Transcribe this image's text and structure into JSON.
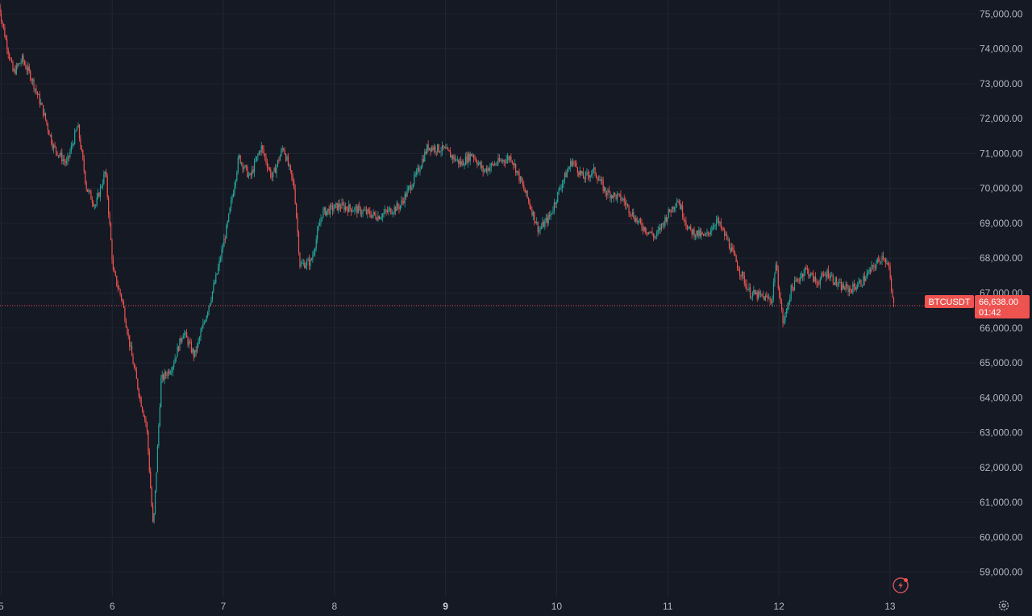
{
  "chart_data": {
    "type": "candlestick",
    "symbol": "BTCUSDT",
    "last_price": "66,638.00",
    "countdown": "01:42",
    "last_price_value": 66638,
    "ylim": [
      58300,
      75400
    ],
    "y_ticks": [
      {
        "value": 75000,
        "label": "75,000.00"
      },
      {
        "value": 74000,
        "label": "74,000.00"
      },
      {
        "value": 73000,
        "label": "73,000.00"
      },
      {
        "value": 72000,
        "label": "72,000.00"
      },
      {
        "value": 71000,
        "label": "71,000.00"
      },
      {
        "value": 70000,
        "label": "70,000.00"
      },
      {
        "value": 69000,
        "label": "69,000.00"
      },
      {
        "value": 68000,
        "label": "68,000.00"
      },
      {
        "value": 67000,
        "label": "67,000.00"
      },
      {
        "value": 66000,
        "label": "66,000.00"
      },
      {
        "value": 65000,
        "label": "65,000.00"
      },
      {
        "value": 64000,
        "label": "64,000.00"
      },
      {
        "value": 63000,
        "label": "63,000.00"
      },
      {
        "value": 62000,
        "label": "62,000.00"
      },
      {
        "value": 61000,
        "label": "61,000.00"
      },
      {
        "value": 60000,
        "label": "60,000.00"
      },
      {
        "value": 59000,
        "label": "59,000.00"
      }
    ],
    "x_range": [
      4.99,
      13.77
    ],
    "x_ticks": [
      {
        "value": 5,
        "label": "5",
        "bold": false
      },
      {
        "value": 6,
        "label": "6",
        "bold": false
      },
      {
        "value": 7,
        "label": "7",
        "bold": false
      },
      {
        "value": 8,
        "label": "8",
        "bold": false
      },
      {
        "value": 9,
        "label": "9",
        "bold": true
      },
      {
        "value": 10,
        "label": "10",
        "bold": false
      },
      {
        "value": 11,
        "label": "11",
        "bold": false
      },
      {
        "value": 12,
        "label": "12",
        "bold": false
      },
      {
        "value": 13,
        "label": "13",
        "bold": false
      }
    ],
    "bull_color": "#26a69a",
    "bear_color": "#ef5350",
    "price_path": [
      [
        4.98,
        75400
      ],
      [
        5.05,
        74300
      ],
      [
        5.12,
        73300
      ],
      [
        5.2,
        73700
      ],
      [
        5.28,
        73200
      ],
      [
        5.38,
        72300
      ],
      [
        5.48,
        71200
      ],
      [
        5.6,
        70700
      ],
      [
        5.7,
        71800
      ],
      [
        5.78,
        70000
      ],
      [
        5.86,
        69500
      ],
      [
        5.95,
        70500
      ],
      [
        6.02,
        67600
      ],
      [
        6.1,
        66800
      ],
      [
        6.18,
        65300
      ],
      [
        6.26,
        64000
      ],
      [
        6.32,
        63200
      ],
      [
        6.38,
        60200
      ],
      [
        6.45,
        64500
      ],
      [
        6.55,
        64900
      ],
      [
        6.65,
        65900
      ],
      [
        6.75,
        65200
      ],
      [
        6.85,
        66300
      ],
      [
        6.95,
        67500
      ],
      [
        7.05,
        69000
      ],
      [
        7.15,
        70900
      ],
      [
        7.25,
        70300
      ],
      [
        7.35,
        71200
      ],
      [
        7.45,
        70300
      ],
      [
        7.55,
        71200
      ],
      [
        7.65,
        70000
      ],
      [
        7.7,
        67800
      ],
      [
        7.8,
        67900
      ],
      [
        7.9,
        69300
      ],
      [
        8.05,
        69500
      ],
      [
        8.2,
        69400
      ],
      [
        8.4,
        69200
      ],
      [
        8.6,
        69500
      ],
      [
        8.75,
        70400
      ],
      [
        8.85,
        71200
      ],
      [
        9.0,
        71100
      ],
      [
        9.15,
        70700
      ],
      [
        9.25,
        71000
      ],
      [
        9.35,
        70500
      ],
      [
        9.45,
        70700
      ],
      [
        9.6,
        70900
      ],
      [
        9.75,
        69700
      ],
      [
        9.85,
        68800
      ],
      [
        9.95,
        69200
      ],
      [
        10.05,
        70100
      ],
      [
        10.15,
        70800
      ],
      [
        10.25,
        70300
      ],
      [
        10.35,
        70500
      ],
      [
        10.45,
        69900
      ],
      [
        10.6,
        69700
      ],
      [
        10.75,
        69000
      ],
      [
        10.9,
        68600
      ],
      [
        11.0,
        69200
      ],
      [
        11.1,
        69700
      ],
      [
        11.2,
        68800
      ],
      [
        11.35,
        68600
      ],
      [
        11.45,
        69100
      ],
      [
        11.55,
        68500
      ],
      [
        11.65,
        67700
      ],
      [
        11.75,
        67000
      ],
      [
        11.85,
        66900
      ],
      [
        11.95,
        66800
      ],
      [
        11.98,
        67900
      ],
      [
        12.05,
        66100
      ],
      [
        12.12,
        67100
      ],
      [
        12.25,
        67700
      ],
      [
        12.35,
        67300
      ],
      [
        12.45,
        67600
      ],
      [
        12.55,
        67200
      ],
      [
        12.65,
        67100
      ],
      [
        12.75,
        67300
      ],
      [
        12.85,
        67700
      ],
      [
        12.95,
        68100
      ],
      [
        13.0,
        67700
      ],
      [
        13.04,
        66638
      ]
    ]
  },
  "icons": {
    "bolt": "lightning-icon",
    "settings": "gear-icon"
  }
}
